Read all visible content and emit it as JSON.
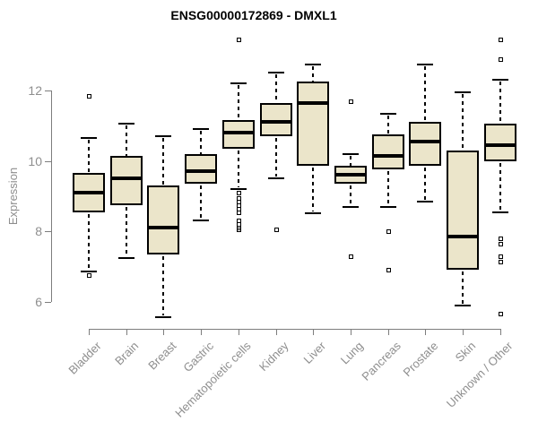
{
  "chart_data": {
    "type": "boxplot",
    "title": "ENSG00000172869 - DMXL1",
    "ylabel": "Expression",
    "yticks": [
      6,
      8,
      10,
      12
    ],
    "ylim": [
      5.3,
      13.6
    ],
    "grid": false,
    "legend": "none",
    "colors": {
      "box_fill": "#EBE5CA",
      "box_border": "#000000",
      "axis_line": "#7d7d7d",
      "tick_label": "#8e8e8e",
      "title": "#000000"
    },
    "categories": [
      "Bladder",
      "Brain",
      "Breast",
      "Gastric",
      "Hematopoietic cells",
      "Kidney",
      "Liver",
      "Lung",
      "Pancreas",
      "Prostate",
      "Skin",
      "Unknown / Other"
    ],
    "series": [
      {
        "name": "Bladder",
        "whisker_low": 6.85,
        "q1": 8.55,
        "median": 9.1,
        "q3": 9.65,
        "whisker_high": 10.65,
        "outliers": [
          11.85,
          6.75
        ]
      },
      {
        "name": "Brain",
        "whisker_low": 7.25,
        "q1": 8.75,
        "median": 9.5,
        "q3": 10.15,
        "whisker_high": 11.05,
        "outliers": []
      },
      {
        "name": "Breast",
        "whisker_low": 5.55,
        "q1": 7.35,
        "median": 8.1,
        "q3": 9.3,
        "whisker_high": 10.7,
        "outliers": []
      },
      {
        "name": "Gastric",
        "whisker_low": 8.3,
        "q1": 9.35,
        "median": 9.7,
        "q3": 10.2,
        "whisker_high": 10.9,
        "outliers": []
      },
      {
        "name": "Hematopoietic cells",
        "whisker_low": 9.2,
        "q1": 10.35,
        "median": 10.8,
        "q3": 11.15,
        "whisker_high": 12.2,
        "outliers": [
          13.45,
          9.1,
          8.95,
          8.85,
          8.75,
          8.65,
          8.55,
          8.3,
          8.2,
          8.1,
          8.05
        ]
      },
      {
        "name": "Kidney",
        "whisker_low": 9.5,
        "q1": 10.7,
        "median": 11.1,
        "q3": 11.65,
        "whisker_high": 12.5,
        "outliers": [
          8.05
        ]
      },
      {
        "name": "Liver",
        "whisker_low": 8.5,
        "q1": 9.85,
        "median": 11.65,
        "q3": 12.25,
        "whisker_high": 12.75,
        "outliers": []
      },
      {
        "name": "Lung",
        "whisker_low": 8.7,
        "q1": 9.35,
        "median": 9.6,
        "q3": 9.85,
        "whisker_high": 10.2,
        "outliers": [
          11.7,
          7.3
        ]
      },
      {
        "name": "Pancreas",
        "whisker_low": 8.7,
        "q1": 9.75,
        "median": 10.15,
        "q3": 10.75,
        "whisker_high": 11.35,
        "outliers": [
          8.0,
          6.9
        ]
      },
      {
        "name": "Prostate",
        "whisker_low": 8.85,
        "q1": 9.85,
        "median": 10.55,
        "q3": 11.1,
        "whisker_high": 12.75,
        "outliers": []
      },
      {
        "name": "Skin",
        "whisker_low": 5.9,
        "q1": 6.9,
        "median": 7.85,
        "q3": 10.3,
        "whisker_high": 11.95,
        "outliers": []
      },
      {
        "name": "Unknown / Other",
        "whisker_low": 8.55,
        "q1": 10.0,
        "median": 10.45,
        "q3": 11.05,
        "whisker_high": 12.3,
        "outliers": [
          13.45,
          12.9,
          7.8,
          7.65,
          7.3,
          7.15,
          5.65
        ]
      }
    ]
  }
}
